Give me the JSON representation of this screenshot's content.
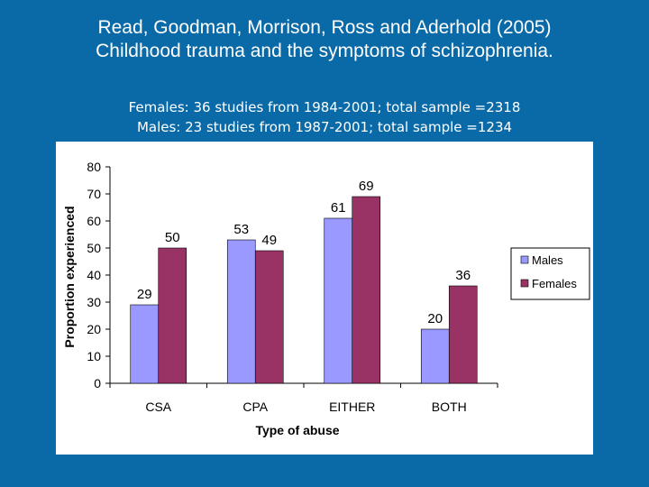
{
  "slide": {
    "title_line1": "Read, Goodman, Morrison, Ross and Aderhold (2005)",
    "title_line2": "Childhood trauma and the symptoms of schizophrenia.",
    "subtitle_line1": "Females: 36 studies from 1984-2001; total sample =2318",
    "subtitle_line2": "Males: 23 studies from 1987-2001; total sample =1234"
  },
  "chart_data": {
    "type": "bar",
    "categories": [
      "CSA",
      "CPA",
      "EITHER",
      "BOTH"
    ],
    "series": [
      {
        "name": "Males",
        "values": [
          29,
          53,
          61,
          20
        ],
        "color": "#9999ff"
      },
      {
        "name": "Females",
        "values": [
          50,
          49,
          69,
          36
        ],
        "color": "#993366"
      }
    ],
    "xlabel": "Type of abuse",
    "ylabel": "Proportion experienced",
    "ylim": [
      0,
      80
    ],
    "yticks": [
      "0",
      "10",
      "20",
      "30",
      "40",
      "50",
      "60",
      "70",
      "80"
    ],
    "legend_position": "right",
    "grid": false
  }
}
